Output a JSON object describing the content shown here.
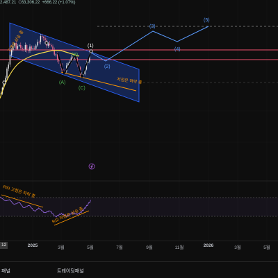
{
  "legend": {
    "low_value": "2,487.21",
    "close_label": "C",
    "close_value": "63,306.22",
    "change": "+666.22 (+1.07%)"
  },
  "annotations": {
    "highs_rising": "고점은 상승 중",
    "lows_falling": "저점은 하락 중",
    "rsi_highs_falling": "RSI 고점은 하락 중",
    "rsi_lows_rising": "RSI 저점은 상승 중"
  },
  "wave_labels": {
    "w1": "(1)",
    "w2": "(2)",
    "w3": "(3)",
    "w4": "(4)",
    "w5": "(5)",
    "wa": "(A)",
    "wb": "(B)",
    "wc": "(C)"
  },
  "time_axis": {
    "current": "12",
    "labels": [
      "2025",
      "3월",
      "5월",
      "7월",
      "9월",
      "11월",
      "2026",
      "3월",
      "5월"
    ]
  },
  "bottom_panel": {
    "tabs": [
      "패널",
      "트레이딩패널"
    ]
  },
  "icons": {
    "script_marker": "script-icon",
    "pivot_marker": "circle-marker-icon"
  },
  "colors": {
    "background": "#0e0e0e",
    "channel": "#2962ff",
    "channel_fill": "rgba(41, 98, 255, 0.28)",
    "level_red": "#f0506e",
    "projection_blue": "#5a9bff",
    "wave_white": "#ffffff",
    "corrective_green": "#4caf50",
    "annotation_orange": "#ff9800",
    "moving_average": "#f5d94a",
    "rsi": "#8e63d6",
    "rsi_band": "rgba(126, 87, 194, 0.07)",
    "candle_up": "#e6e6e6",
    "candle_down": "#ef6f8f"
  }
}
